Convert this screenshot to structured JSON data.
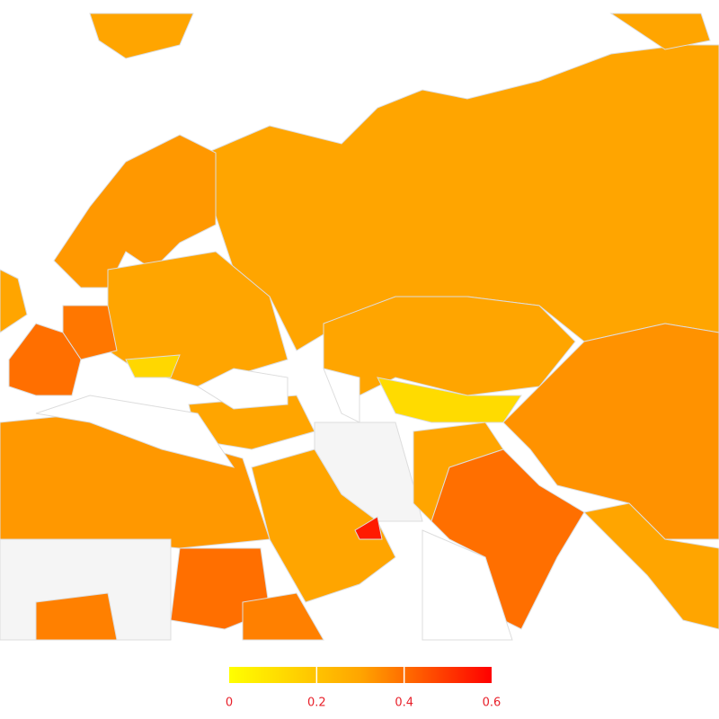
{
  "legend": {
    "type": "colorbar",
    "lim": [
      0,
      0.6
    ],
    "ticks": [
      0,
      0.2,
      0.4,
      0.6
    ],
    "colors": [
      "#ffff00",
      "#ffa500",
      "#ff0000"
    ]
  }
}
